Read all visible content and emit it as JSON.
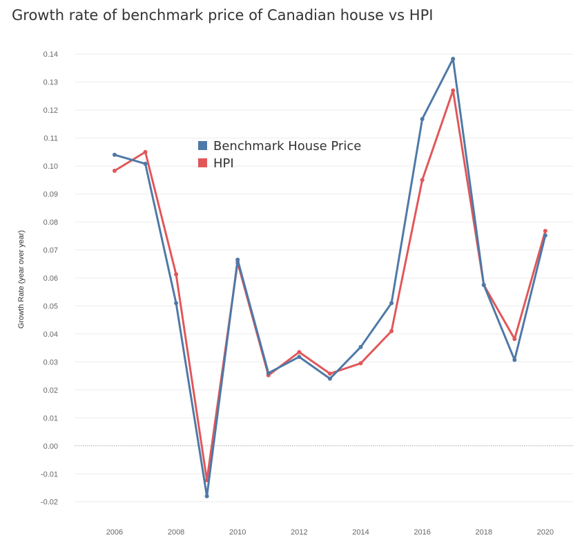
{
  "chart_data": {
    "type": "line",
    "title": "Growth rate of benchmark price of Canadian house vs HPI",
    "xlabel": "",
    "ylabel": "Growth Rate (year over year)",
    "x": [
      2006,
      2007,
      2008,
      2009,
      2010,
      2011,
      2012,
      2013,
      2014,
      2015,
      2016,
      2017,
      2018,
      2019,
      2020
    ],
    "xlim": [
      2004.7,
      2020.9
    ],
    "xticks": [
      2006,
      2008,
      2010,
      2012,
      2014,
      2016,
      2018,
      2020
    ],
    "ylim": [
      -0.026,
      0.145
    ],
    "yticks": [
      -0.02,
      -0.01,
      0.0,
      0.01,
      0.02,
      0.03,
      0.04,
      0.05,
      0.06,
      0.07,
      0.08,
      0.09,
      0.1,
      0.11,
      0.12,
      0.13,
      0.14
    ],
    "ytick_labels": [
      "-0.02",
      "-0.01",
      "0.00",
      "0.01",
      "0.02",
      "0.03",
      "0.04",
      "0.05",
      "0.06",
      "0.07",
      "0.08",
      "0.09",
      "0.10",
      "0.11",
      "0.12",
      "0.13",
      "0.14"
    ],
    "grid": true,
    "legend_position": "upper-left-inside",
    "series": [
      {
        "name": "Benchmark House Price",
        "color": "#4e79a7",
        "values": [
          0.104,
          0.1008,
          0.051,
          -0.018,
          0.0665,
          0.026,
          0.0318,
          0.024,
          0.0353,
          0.051,
          0.1168,
          0.1383,
          0.0575,
          0.0307,
          0.0752
        ]
      },
      {
        "name": "HPI",
        "color": "#e15759",
        "values": [
          0.0983,
          0.105,
          0.0613,
          -0.0123,
          0.0655,
          0.0252,
          0.0335,
          0.0258,
          0.0295,
          0.041,
          0.095,
          0.127,
          0.0575,
          0.0382,
          0.0768
        ]
      }
    ]
  }
}
